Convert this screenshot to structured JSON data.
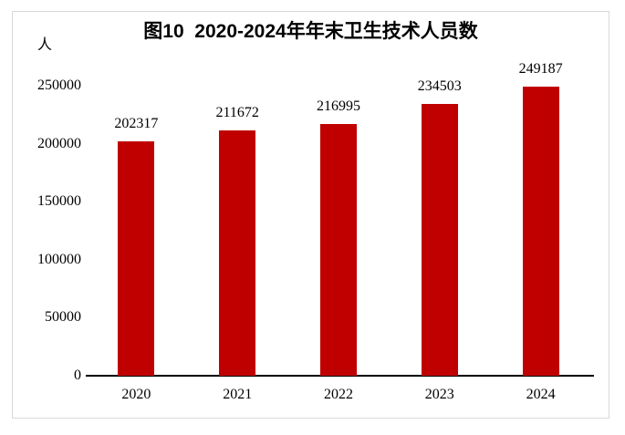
{
  "chart_data": {
    "type": "bar",
    "title": "图10  2020-2024年年末卫生技术人员数",
    "unit_label": "人",
    "categories": [
      "2020",
      "2021",
      "2022",
      "2023",
      "2024"
    ],
    "values": [
      202317,
      211672,
      216995,
      234503,
      249187
    ],
    "value_labels": [
      "202317",
      "211672",
      "216995",
      "234503",
      "249187"
    ],
    "xlabel": "",
    "ylabel": "人",
    "ylim": [
      0,
      250000
    ],
    "yticks": [
      0,
      50000,
      100000,
      150000,
      200000,
      250000
    ],
    "grid": false,
    "legend_position": "none",
    "bar_color": "#c00000",
    "axis_color": "#000000",
    "text_color": "#000000",
    "frame_border_color": "#d9d9d9"
  }
}
